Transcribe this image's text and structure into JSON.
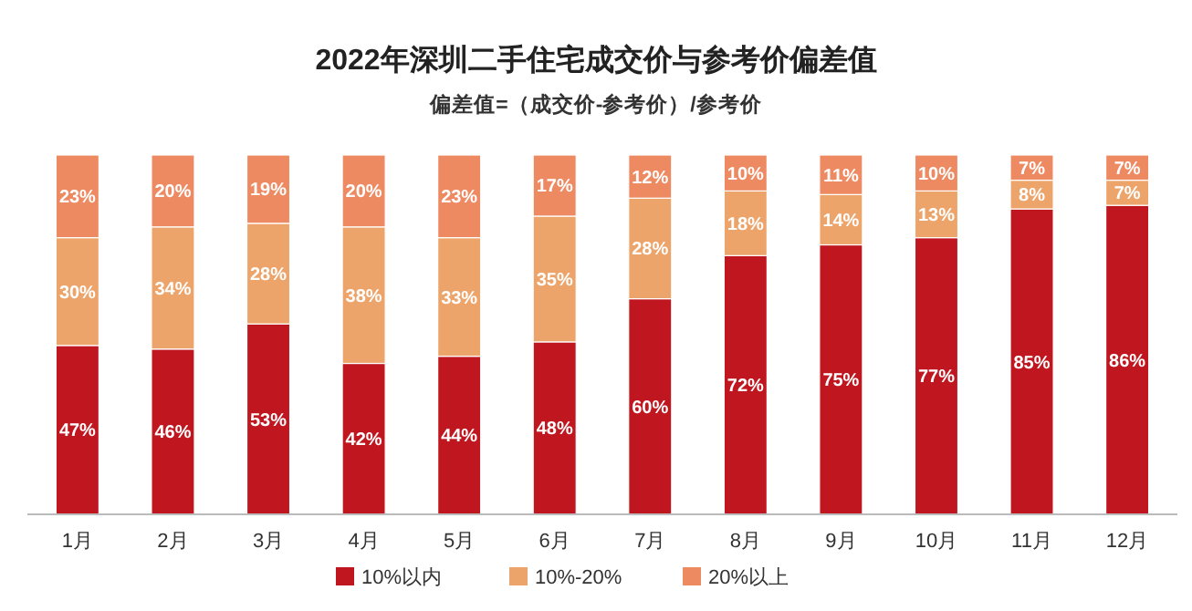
{
  "chart_data": {
    "type": "bar",
    "title": "2022年深圳二手住宅成交价与参考价偏差值",
    "subtitle": "偏差值=（成交价-参考价）/参考价",
    "categories": [
      "1月",
      "2月",
      "3月",
      "4月",
      "5月",
      "6月",
      "7月",
      "8月",
      "9月",
      "10月",
      "11月",
      "12月"
    ],
    "stacked": true,
    "ylim": [
      0,
      100
    ],
    "legend": "bottom",
    "tick_labels": "x",
    "series": [
      {
        "name": "10%以内",
        "color": "#c0161f",
        "values": [
          47,
          46,
          53,
          42,
          44,
          48,
          60,
          72,
          75,
          77,
          85,
          86
        ],
        "value_labels": [
          "47%",
          "46%",
          "53%",
          "42%",
          "44%",
          "48%",
          "60%",
          "72%",
          "75%",
          "77%",
          "85%",
          "86%"
        ]
      },
      {
        "name": "10%-20%",
        "color": "#eda46a",
        "values": [
          30,
          34,
          28,
          38,
          33,
          35,
          28,
          18,
          14,
          13,
          8,
          7
        ],
        "value_labels": [
          "30%",
          "34%",
          "28%",
          "38%",
          "33%",
          "35%",
          "28%",
          "18%",
          "14%",
          "13%",
          "8%",
          "7%"
        ]
      },
      {
        "name": "20%以上",
        "color": "#ee8a62",
        "values": [
          23,
          20,
          19,
          20,
          23,
          17,
          12,
          10,
          11,
          10,
          7,
          7
        ],
        "value_labels": [
          "23%",
          "20%",
          "19%",
          "20%",
          "23%",
          "17%",
          "12%",
          "10%",
          "11%",
          "10%",
          "7%",
          "7%"
        ]
      }
    ]
  }
}
